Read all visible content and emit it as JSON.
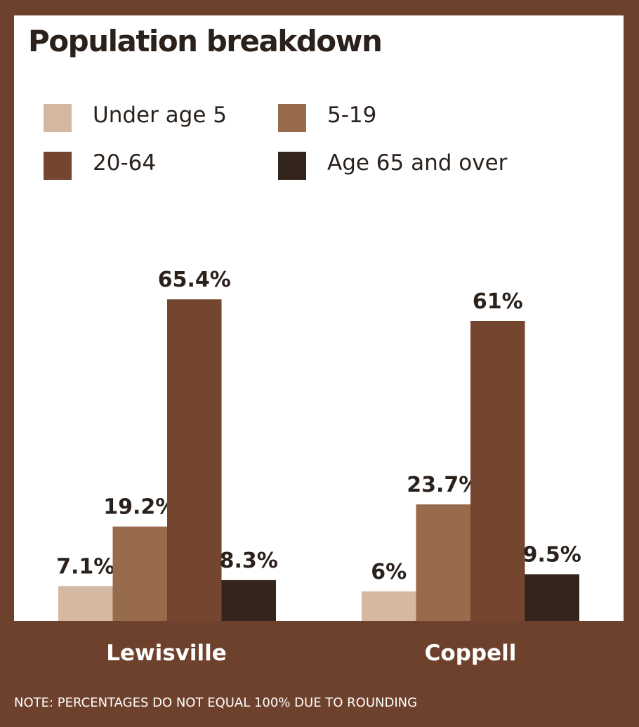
{
  "colors": {
    "frame": "#6e412c",
    "panel": "#ffffff",
    "text": "#2b211c",
    "series": [
      "#d4b8a2",
      "#986b4d",
      "#744630",
      "#33241c"
    ]
  },
  "chart_data": {
    "type": "bar",
    "title": "Population breakdown",
    "categories": [
      "Lewisville",
      "Coppell"
    ],
    "series": [
      {
        "name": "Under age 5",
        "values": [
          7.1,
          6
        ],
        "labels": [
          "7.1%",
          "6%"
        ]
      },
      {
        "name": "5-19",
        "values": [
          19.2,
          23.7
        ],
        "labels": [
          "19.2%",
          "23.7%"
        ]
      },
      {
        "name": "20-64",
        "values": [
          65.4,
          61
        ],
        "labels": [
          "65.4%",
          "61%"
        ]
      },
      {
        "name": "Age 65 and over",
        "values": [
          8.3,
          9.5
        ],
        "labels": [
          "8.3%",
          "9.5%"
        ]
      }
    ],
    "ylim": [
      0,
      100
    ],
    "grid": false,
    "legend": "top",
    "note": "NOTE: PERCENTAGES DO NOT EQUAL 100% DUE TO ROUNDING"
  }
}
